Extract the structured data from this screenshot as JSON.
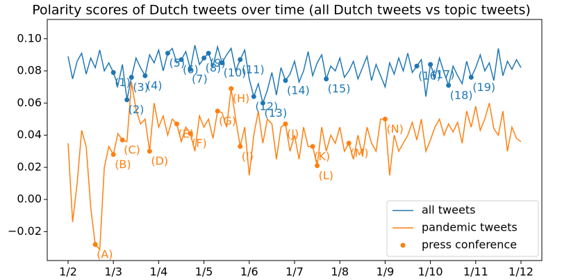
{
  "chart_data": {
    "type": "line",
    "title": "Polarity scores of Dutch tweets over time (all Dutch tweets vs topic tweets)",
    "categories": [
      "1/2",
      null,
      null,
      null,
      null,
      null,
      null,
      null,
      null,
      null,
      "1/3",
      null,
      null,
      null,
      null,
      null,
      null,
      null,
      null,
      null,
      "1/4",
      null,
      null,
      null,
      null,
      null,
      null,
      null,
      null,
      null,
      "1/5",
      null,
      null,
      null,
      null,
      null,
      null,
      null,
      null,
      null,
      "1/6",
      null,
      null,
      null,
      null,
      null,
      null,
      null,
      null,
      null,
      "1/7",
      null,
      null,
      null,
      null,
      null,
      null,
      null,
      null,
      null,
      "1/8",
      null,
      null,
      null,
      null,
      null,
      null,
      null,
      null,
      null,
      "1/9",
      null,
      null,
      null,
      null,
      null,
      null,
      null,
      null,
      null,
      "1/10",
      null,
      null,
      null,
      null,
      null,
      null,
      null,
      null,
      null,
      "1/11",
      null,
      null,
      null,
      null,
      null,
      null,
      null,
      null,
      null,
      "1/12"
    ],
    "ylim": [
      -0.038,
      0.112
    ],
    "yticks": [
      {
        "value": -0.02,
        "label": "−0.02"
      },
      {
        "value": 0,
        "label": "0.00"
      },
      {
        "value": 0.02,
        "label": "0.02"
      },
      {
        "value": 0.04,
        "label": "0.04"
      },
      {
        "value": 0.06,
        "label": "0.06"
      },
      {
        "value": 0.08,
        "label": "0.08"
      },
      {
        "value": 0.1,
        "label": "0.10"
      }
    ],
    "legend": "lower right",
    "series": [
      {
        "name": "all tweets",
        "color": "#1f77b4",
        "values": [
          0.089,
          0.075,
          0.086,
          0.091,
          0.078,
          0.088,
          0.082,
          0.093,
          0.08,
          0.085,
          0.079,
          0.071,
          0.084,
          0.062,
          0.076,
          0.088,
          0.082,
          0.077,
          0.09,
          0.085,
          0.093,
          0.08,
          0.091,
          0.094,
          0.085,
          0.087,
          0.092,
          0.081,
          0.096,
          0.084,
          0.088,
          0.091,
          0.083,
          0.095,
          0.085,
          0.09,
          0.094,
          0.08,
          0.087,
          0.093,
          0.075,
          0.064,
          0.072,
          0.06,
          0.068,
          0.079,
          0.065,
          0.082,
          0.074,
          0.078,
          0.086,
          0.073,
          0.08,
          0.092,
          0.077,
          0.085,
          0.09,
          0.075,
          0.083,
          0.08,
          0.088,
          0.076,
          0.08,
          0.086,
          0.075,
          0.082,
          0.089,
          0.074,
          0.084,
          0.077,
          0.07,
          0.085,
          0.078,
          0.088,
          0.08,
          0.091,
          0.079,
          0.083,
          0.087,
          0.064,
          0.084,
          0.076,
          0.088,
          0.079,
          0.071,
          0.083,
          0.077,
          0.072,
          0.086,
          0.076,
          0.082,
          0.09,
          0.08,
          0.085,
          0.074,
          0.094,
          0.077,
          0.086,
          0.081,
          0.087,
          0.082
        ],
        "annotations": [
          {
            "index": 10,
            "label": "(1)"
          },
          {
            "index": 13,
            "label": "(2)"
          },
          {
            "index": 14,
            "label": "(3)"
          },
          {
            "index": 17,
            "label": "(4)"
          },
          {
            "index": 22,
            "label": "(5)"
          },
          {
            "index": 25,
            "label": "(6)"
          },
          {
            "index": 27,
            "label": "(7)"
          },
          {
            "index": 30,
            "label": "(8)"
          },
          {
            "index": 31,
            "label": "(9)"
          },
          {
            "index": 34,
            "label": "(10)"
          },
          {
            "index": 38,
            "label": "(11)"
          },
          {
            "index": 41,
            "label": "(12)"
          },
          {
            "index": 43,
            "label": "(13)"
          },
          {
            "index": 48,
            "label": "(14)"
          },
          {
            "index": 57,
            "label": "(15)"
          },
          {
            "index": 77,
            "label": "(16)"
          },
          {
            "index": 80,
            "label": "(17)"
          },
          {
            "index": 84,
            "label": "(18)"
          },
          {
            "index": 89,
            "label": "(19)"
          }
        ]
      },
      {
        "name": "pandemic tweets",
        "color": "#ff7f0e",
        "values": [
          0.035,
          -0.014,
          0.01,
          0.043,
          0.033,
          -0.005,
          -0.028,
          -0.031,
          0.02,
          0.033,
          0.028,
          0.041,
          0.037,
          0.036,
          0.073,
          0.056,
          0.047,
          0.05,
          0.03,
          0.06,
          0.045,
          0.052,
          0.04,
          0.05,
          0.047,
          0.036,
          0.045,
          0.041,
          0.03,
          0.052,
          0.045,
          0.05,
          0.038,
          0.055,
          0.054,
          0.045,
          0.069,
          0.05,
          0.033,
          0.045,
          0.015,
          0.04,
          0.055,
          0.035,
          0.05,
          0.047,
          0.025,
          0.045,
          0.047,
          0.03,
          0.04,
          0.025,
          0.045,
          0.033,
          0.033,
          0.021,
          0.045,
          0.03,
          0.04,
          0.035,
          0.045,
          0.03,
          0.035,
          0.025,
          0.04,
          0.027,
          0.045,
          0.035,
          0.03,
          0.05,
          0.05,
          0.015,
          0.04,
          0.03,
          0.035,
          0.04,
          0.048,
          0.037,
          0.05,
          0.03,
          0.037,
          0.045,
          0.05,
          0.04,
          0.047,
          0.042,
          0.048,
          0.035,
          0.055,
          0.045,
          0.058,
          0.043,
          0.05,
          0.06,
          0.044,
          0.04,
          0.055,
          0.03,
          0.045,
          0.038,
          0.036
        ],
        "annotations": [
          {
            "index": 6,
            "label": "(A)"
          },
          {
            "index": 10,
            "label": "(B)"
          },
          {
            "index": 12,
            "label": "(C)"
          },
          {
            "index": 18,
            "label": "(D)"
          },
          {
            "index": 24,
            "label": "(E)"
          },
          {
            "index": 27,
            "label": "(F)"
          },
          {
            "index": 33,
            "label": "(G)"
          },
          {
            "index": 36,
            "label": "(H)"
          },
          {
            "index": 38,
            "label": "(I)"
          },
          {
            "index": 48,
            "label": "(J)"
          },
          {
            "index": 54,
            "label": "(K)"
          },
          {
            "index": 55,
            "label": "(L)"
          },
          {
            "index": 62,
            "label": "(M)"
          },
          {
            "index": 70,
            "label": "(N)"
          }
        ]
      }
    ],
    "marker_legend": {
      "name": "press conference",
      "color": "#ff7f0e"
    }
  }
}
